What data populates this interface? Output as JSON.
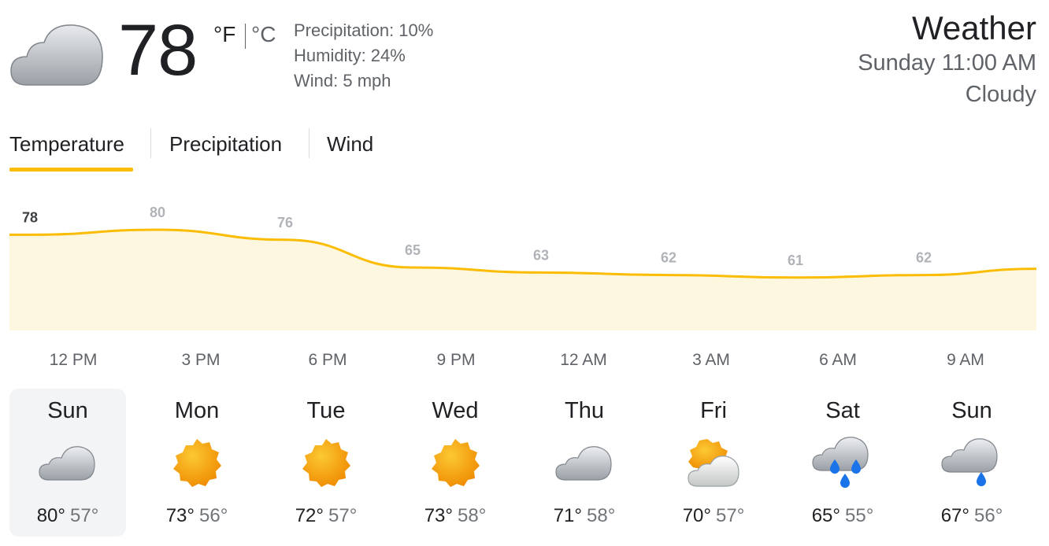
{
  "current": {
    "icon": "cloudy-icon",
    "temperature": "78",
    "unit_f": "°F",
    "unit_c": "°C",
    "precipitation": "Precipitation: 10%",
    "humidity": "Humidity: 24%",
    "wind": "Wind: 5 mph"
  },
  "header": {
    "title": "Weather",
    "datetime": "Sunday 11:00 AM",
    "condition": "Cloudy"
  },
  "tabs": [
    {
      "label": "Temperature",
      "active": true
    },
    {
      "label": "Precipitation",
      "active": false
    },
    {
      "label": "Wind",
      "active": false
    }
  ],
  "colors": {
    "accent": "#fbbc04",
    "chart_fill": "#fef7e0",
    "rain": "#1a73e8",
    "sun": "#f9a825"
  },
  "chart_data": {
    "type": "area",
    "x": [
      "12 PM",
      "3 PM",
      "6 PM",
      "9 PM",
      "12 AM",
      "3 AM",
      "6 AM",
      "9 AM"
    ],
    "values": [
      78,
      80,
      76,
      65,
      63,
      62,
      61,
      62
    ],
    "labels": [
      "78",
      "80",
      "76",
      "65",
      "63",
      "62",
      "61",
      "62"
    ],
    "ylim": [
      40,
      90
    ],
    "unit": "°F"
  },
  "days": [
    {
      "name": "Sun",
      "icon": "cloudy-icon",
      "high": "80°",
      "low": "57°",
      "selected": true
    },
    {
      "name": "Mon",
      "icon": "sunny-icon",
      "high": "73°",
      "low": "56°",
      "selected": false
    },
    {
      "name": "Tue",
      "icon": "sunny-icon",
      "high": "72°",
      "low": "57°",
      "selected": false
    },
    {
      "name": "Wed",
      "icon": "sunny-icon",
      "high": "73°",
      "low": "58°",
      "selected": false
    },
    {
      "name": "Thu",
      "icon": "cloudy-icon",
      "high": "71°",
      "low": "58°",
      "selected": false
    },
    {
      "name": "Fri",
      "icon": "partly-cloudy-icon",
      "high": "70°",
      "low": "57°",
      "selected": false
    },
    {
      "name": "Sat",
      "icon": "rain-icon",
      "high": "65°",
      "low": "55°",
      "selected": false
    },
    {
      "name": "Sun",
      "icon": "light-rain-icon",
      "high": "67°",
      "low": "56°",
      "selected": false
    }
  ]
}
